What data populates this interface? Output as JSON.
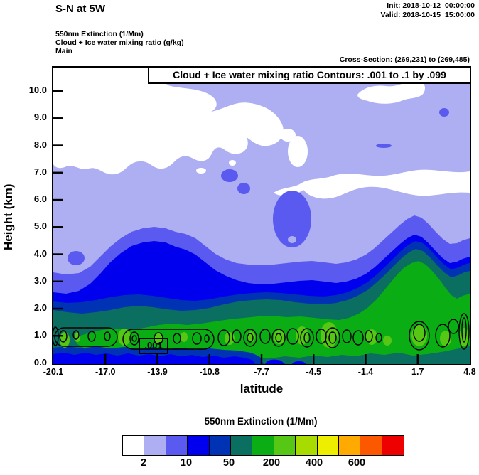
{
  "header": {
    "title": "S-N at 5W",
    "init_label": "Init: 2018-10-12_00:00:00",
    "valid_label": "Valid: 2018-10-15_15:00:00",
    "field_lines": [
      "550nm Extinction  (1/Mm)",
      "Cloud + Ice water mixing ratio  (g/kg)",
      "Main"
    ],
    "cross_section": "Cross-Section: (269,231) to (269,485)"
  },
  "plot": {
    "contour_title": "Cloud + Ice water mixing ratio Contours: .001 to .1 by .099",
    "contour_label": ".001",
    "xlabel": "latitude",
    "ylabel": "Height (km)",
    "x_ticks": [
      "-20.1",
      "-17.0",
      "-13.9",
      "-10.8",
      "-7.7",
      "-4.5",
      "-1.4",
      "1.7",
      "4.8"
    ],
    "y_ticks": [
      "0.0",
      "1.0",
      "2.0",
      "3.0",
      "4.0",
      "5.0",
      "6.0",
      "7.0",
      "8.0",
      "9.0",
      "10.0"
    ]
  },
  "colorbar": {
    "title": "550nm Extinction  (1/Mm)",
    "labels": [
      "2",
      "10",
      "50",
      "200",
      "400",
      "600"
    ],
    "label_boundaries": [
      1,
      3,
      5,
      7,
      9,
      11
    ],
    "colors": [
      "#FFFFFF",
      "#AEAEF2",
      "#5A5AF0",
      "#0000EE",
      "#0033B3",
      "#0A6E60",
      "#0AAD14",
      "#55C714",
      "#A8DC00",
      "#EEEE00",
      "#FFAA00",
      "#FB5800",
      "#EE0000"
    ]
  },
  "chart_data": {
    "type": "heatmap",
    "title": "550nm Extinction (1/Mm) vertical cross-section, S-N at 5W",
    "subtitle": "Cloud + Ice water mixing ratio Contours: .001 to .1 by .099",
    "xlabel": "latitude",
    "ylabel": "Height (km)",
    "x_ticks": [
      -20.1,
      -17.0,
      -13.9,
      -10.8,
      -7.7,
      -4.5,
      -1.4,
      1.7,
      4.8
    ],
    "y_ticks": [
      0,
      1,
      2,
      3,
      4,
      5,
      6,
      7,
      8,
      9,
      10
    ],
    "xlim": [
      -20.1,
      4.8
    ],
    "ylim": [
      0,
      10.7
    ],
    "grid": false,
    "legend_position": "bottom",
    "fill_variable": "550nm Extinction (1/Mm)",
    "n_color_bins": 13,
    "labeled_color_boundaries": [
      2,
      10,
      50,
      200,
      400,
      600
    ],
    "fill_colors": [
      "#FFFFFF",
      "#AEAEF2",
      "#5A5AF0",
      "#0000EE",
      "#0033B3",
      "#0A6E60",
      "#0AAD14",
      "#55C714",
      "#A8DC00",
      "#EEEE00",
      "#FFAA00",
      "#FB5800",
      "#EE0000"
    ],
    "overlay_contours": {
      "variable": "Cloud + Ice water mixing ratio (g/kg)",
      "from": 0.001,
      "to": 0.1,
      "by": 0.099,
      "labeled_value": 0.001,
      "shape": "chain of small closed contours near 1 km height across all latitudes"
    },
    "approx_field_description": {
      "latitudes": [
        -20.1,
        -17.0,
        -13.9,
        -10.8,
        -7.7,
        -4.5,
        -1.4,
        1.7,
        4.8
      ],
      "top_height_km_extinction_ge_2": [
        8.5,
        7.2,
        7.5,
        10.4,
        10.4,
        7.0,
        6.6,
        10.4,
        6.9
      ],
      "top_height_km_extinction_ge_5": [
        3.3,
        5.0,
        3.8,
        3.7,
        3.7,
        3.9,
        4.4,
        5.4,
        4.6
      ],
      "top_height_km_extinction_ge_10": [
        2.6,
        4.4,
        3.0,
        2.9,
        2.9,
        3.1,
        4.0,
        4.8,
        4.0
      ],
      "top_height_km_extinction_ge_50": [
        2.0,
        2.1,
        2.3,
        2.4,
        2.3,
        2.4,
        3.2,
        4.1,
        3.3
      ],
      "surface_layer": "maximum extinction 100-300 /Mm (bright green) in spots near 1 km height",
      "clear_air": "white (< 2 /Mm) patches aloft at upper-left and 6-8 km on the right half"
    }
  }
}
